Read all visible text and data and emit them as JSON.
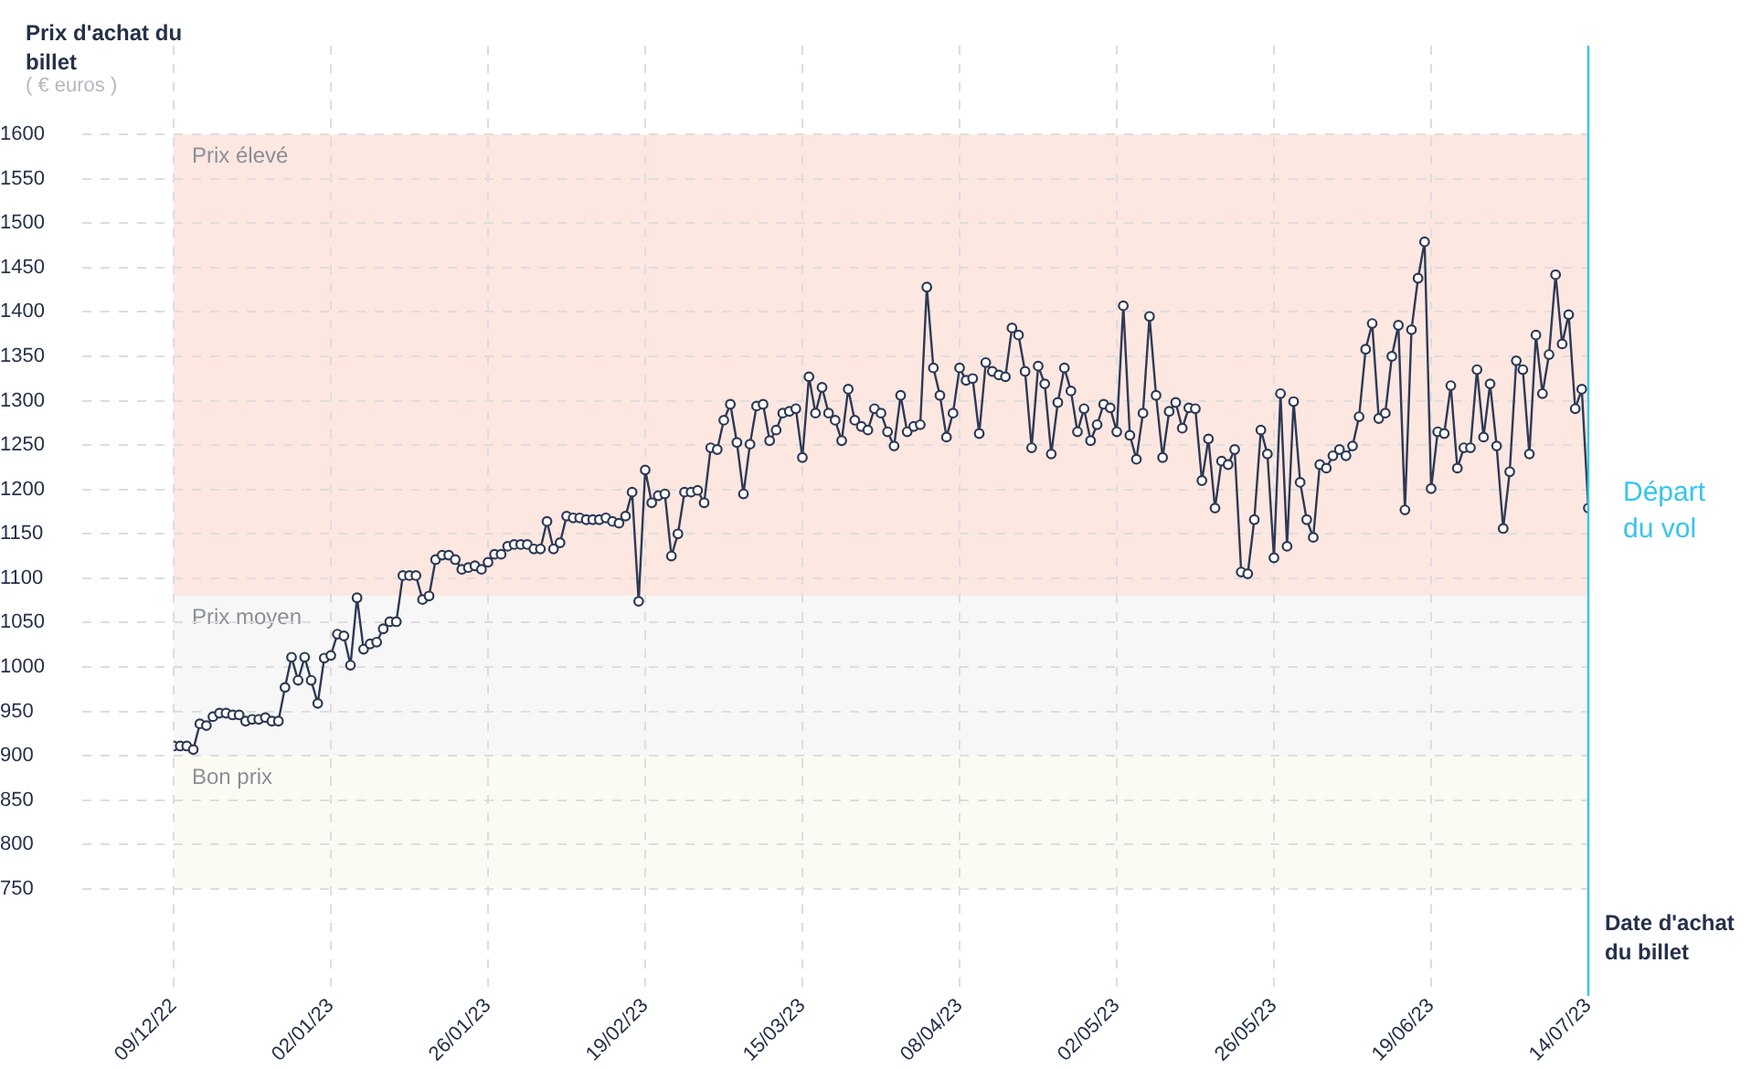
{
  "chart_data": {
    "type": "line",
    "ylabel": "Prix d'achat du billet",
    "xlabel": "Date d'achat du billet",
    "annotations": [
      "( € euros )"
    ],
    "x": [
      "2022-12-09",
      "2022-12-10",
      "2022-12-11",
      "2022-12-12",
      "2022-12-13",
      "2022-12-14",
      "2022-12-15",
      "2022-12-16",
      "2022-12-17",
      "2022-12-18",
      "2022-12-19",
      "2022-12-20",
      "2022-12-21",
      "2022-12-22",
      "2022-12-23",
      "2022-12-24",
      "2022-12-25",
      "2022-12-26",
      "2022-12-27",
      "2022-12-28",
      "2022-12-29",
      "2022-12-30",
      "2022-12-31",
      "2023-01-01",
      "2023-01-02",
      "2023-01-03",
      "2023-01-04",
      "2023-01-05",
      "2023-01-06",
      "2023-01-07",
      "2023-01-08",
      "2023-01-09",
      "2023-01-10",
      "2023-01-11",
      "2023-01-12",
      "2023-01-13",
      "2023-01-14",
      "2023-01-15",
      "2023-01-16",
      "2023-01-17",
      "2023-01-18",
      "2023-01-19",
      "2023-01-20",
      "2023-01-21",
      "2023-01-22",
      "2023-01-23",
      "2023-01-24",
      "2023-01-25",
      "2023-01-26",
      "2023-01-27",
      "2023-01-28",
      "2023-01-29",
      "2023-01-30",
      "2023-01-31",
      "2023-02-01",
      "2023-02-02",
      "2023-02-03",
      "2023-02-04",
      "2023-02-05",
      "2023-02-06",
      "2023-02-07",
      "2023-02-08",
      "2023-02-09",
      "2023-02-10",
      "2023-02-11",
      "2023-02-12",
      "2023-02-13",
      "2023-02-14",
      "2023-02-15",
      "2023-02-16",
      "2023-02-17",
      "2023-02-18",
      "2023-02-19",
      "2023-02-20",
      "2023-02-21",
      "2023-02-22",
      "2023-02-23",
      "2023-02-24",
      "2023-02-25",
      "2023-02-26",
      "2023-02-27",
      "2023-02-28",
      "2023-03-01",
      "2023-03-02",
      "2023-03-03",
      "2023-03-04",
      "2023-03-05",
      "2023-03-06",
      "2023-03-07",
      "2023-03-08",
      "2023-03-09",
      "2023-03-10",
      "2023-03-11",
      "2023-03-12",
      "2023-03-13",
      "2023-03-14",
      "2023-03-15",
      "2023-03-16",
      "2023-03-17",
      "2023-03-18",
      "2023-03-19",
      "2023-03-20",
      "2023-03-21",
      "2023-03-22",
      "2023-03-23",
      "2023-03-24",
      "2023-03-25",
      "2023-03-26",
      "2023-03-27",
      "2023-03-28",
      "2023-03-29",
      "2023-03-30",
      "2023-03-31",
      "2023-04-01",
      "2023-04-02",
      "2023-04-03",
      "2023-04-04",
      "2023-04-05",
      "2023-04-06",
      "2023-04-07",
      "2023-04-08",
      "2023-04-09",
      "2023-04-10",
      "2023-04-11",
      "2023-04-12",
      "2023-04-13",
      "2023-04-14",
      "2023-04-15",
      "2023-04-16",
      "2023-04-17",
      "2023-04-18",
      "2023-04-19",
      "2023-04-20",
      "2023-04-21",
      "2023-04-22",
      "2023-04-23",
      "2023-04-24",
      "2023-04-25",
      "2023-04-26",
      "2023-04-27",
      "2023-04-28",
      "2023-04-29",
      "2023-04-30",
      "2023-05-01",
      "2023-05-02",
      "2023-05-03",
      "2023-05-04",
      "2023-05-05",
      "2023-05-06",
      "2023-05-07",
      "2023-05-08",
      "2023-05-09",
      "2023-05-10",
      "2023-05-11",
      "2023-05-12",
      "2023-05-13",
      "2023-05-14",
      "2023-05-15",
      "2023-05-16",
      "2023-05-17",
      "2023-05-18",
      "2023-05-19",
      "2023-05-20",
      "2023-05-21",
      "2023-05-22",
      "2023-05-23",
      "2023-05-24",
      "2023-05-25",
      "2023-05-26",
      "2023-05-27",
      "2023-05-28",
      "2023-05-29",
      "2023-05-30",
      "2023-05-31",
      "2023-06-01",
      "2023-06-02",
      "2023-06-03",
      "2023-06-04",
      "2023-06-05",
      "2023-06-06",
      "2023-06-07",
      "2023-06-08",
      "2023-06-09",
      "2023-06-10",
      "2023-06-11",
      "2023-06-12",
      "2023-06-13",
      "2023-06-14",
      "2023-06-15",
      "2023-06-16",
      "2023-06-17",
      "2023-06-18",
      "2023-06-19",
      "2023-06-20",
      "2023-06-21",
      "2023-06-22",
      "2023-06-23",
      "2023-06-24",
      "2023-06-25",
      "2023-06-26",
      "2023-06-27",
      "2023-06-28",
      "2023-06-29",
      "2023-06-30",
      "2023-07-01",
      "2023-07-02",
      "2023-07-03",
      "2023-07-04",
      "2023-07-05",
      "2023-07-06",
      "2023-07-07",
      "2023-07-08",
      "2023-07-09",
      "2023-07-10",
      "2023-07-11",
      "2023-07-12",
      "2023-07-13"
    ],
    "series": [
      {
        "color": "#2e3a55",
        "values": [
          911,
          911,
          911,
          907,
          936,
          934,
          944,
          948,
          948,
          946,
          946,
          939,
          941,
          941,
          943,
          939,
          939,
          977,
          1011,
          985,
          1011,
          985,
          959,
          1010,
          1013,
          1037,
          1035,
          1002,
          1078,
          1020,
          1026,
          1028,
          1043,
          1051,
          1051,
          1103,
          1103,
          1103,
          1076,
          1080,
          1121,
          1126,
          1126,
          1121,
          1110,
          1112,
          1114,
          1110,
          1118,
          1127,
          1127,
          1136,
          1138,
          1138,
          1138,
          1133,
          1133,
          1164,
          1133,
          1140,
          1170,
          1168,
          1168,
          1166,
          1166,
          1166,
          1168,
          1164,
          1162,
          1170,
          1197,
          1074,
          1222,
          1185,
          1193,
          1195,
          1125,
          1150,
          1197,
          1197,
          1199,
          1185,
          1247,
          1245,
          1278,
          1296,
          1253,
          1195,
          1251,
          1294,
          1296,
          1255,
          1267,
          1286,
          1288,
          1291,
          1236,
          1327,
          1286,
          1315,
          1286,
          1278,
          1255,
          1313,
          1278,
          1271,
          1267,
          1291,
          1286,
          1265,
          1249,
          1306,
          1265,
          1271,
          1273,
          1428,
          1337,
          1306,
          1259,
          1286,
          1337,
          1323,
          1325,
          1263,
          1343,
          1333,
          1329,
          1327,
          1382,
          1374,
          1333,
          1247,
          1339,
          1319,
          1240,
          1298,
          1337,
          1311,
          1265,
          1291,
          1255,
          1273,
          1296,
          1292,
          1265,
          1407,
          1261,
          1234,
          1286,
          1395,
          1306,
          1236,
          1288,
          1298,
          1269,
          1292,
          1291,
          1210,
          1257,
          1179,
          1232,
          1228,
          1245,
          1107,
          1105,
          1166,
          1267,
          1240,
          1123,
          1308,
          1136,
          1299,
          1208,
          1166,
          1146,
          1228,
          1224,
          1238,
          1245,
          1238,
          1249,
          1282,
          1358,
          1387,
          1280,
          1286,
          1350,
          1385,
          1177,
          1380,
          1438,
          1479,
          1201,
          1265,
          1263,
          1317,
          1224,
          1247,
          1247,
          1335,
          1259,
          1319,
          1249,
          1156,
          1220,
          1345,
          1335,
          1240,
          1374,
          1308,
          1352,
          1442,
          1364,
          1397,
          1291,
          1313,
          1179
        ]
      }
    ],
    "xlim": [
      "2022-12-09",
      "2023-07-13"
    ],
    "xticks": [
      {
        "value": "2022-12-09",
        "label": "09/12/22"
      },
      {
        "value": "2023-01-02",
        "label": "02/01/23"
      },
      {
        "value": "2023-01-26",
        "label": "26/01/23"
      },
      {
        "value": "2023-02-19",
        "label": "19/02/23"
      },
      {
        "value": "2023-03-15",
        "label": "15/03/23"
      },
      {
        "value": "2023-04-08",
        "label": "08/04/23"
      },
      {
        "value": "2023-05-02",
        "label": "02/05/23"
      },
      {
        "value": "2023-05-26",
        "label": "26/05/23"
      },
      {
        "value": "2023-06-19",
        "label": "19/06/23"
      },
      {
        "value": "2023-07-13",
        "label": "14/07/23"
      }
    ],
    "ylim": [
      650,
      1700
    ],
    "yticks": [
      750,
      800,
      850,
      900,
      950,
      1000,
      1050,
      1100,
      1150,
      1200,
      1250,
      1300,
      1350,
      1400,
      1450,
      1500,
      1550,
      1600
    ],
    "bands": [
      {
        "axis": "y",
        "from": 1080,
        "to": 1600,
        "label": "Prix élevé",
        "color": "#fde7e1"
      },
      {
        "axis": "y",
        "from": 900,
        "to": 1080,
        "label": "Prix moyen",
        "color": "#f7f7f7"
      },
      {
        "axis": "y",
        "from": 750,
        "to": 900,
        "label": "Bon prix",
        "color": "#fbfbf3"
      }
    ],
    "ref_lines": [
      {
        "axis": "x",
        "value": "2023-07-13",
        "label": "Départ du vol",
        "color": "#36c5ea"
      }
    ],
    "grid": true,
    "legend": false,
    "marker": "circle",
    "line_style": "solid"
  }
}
